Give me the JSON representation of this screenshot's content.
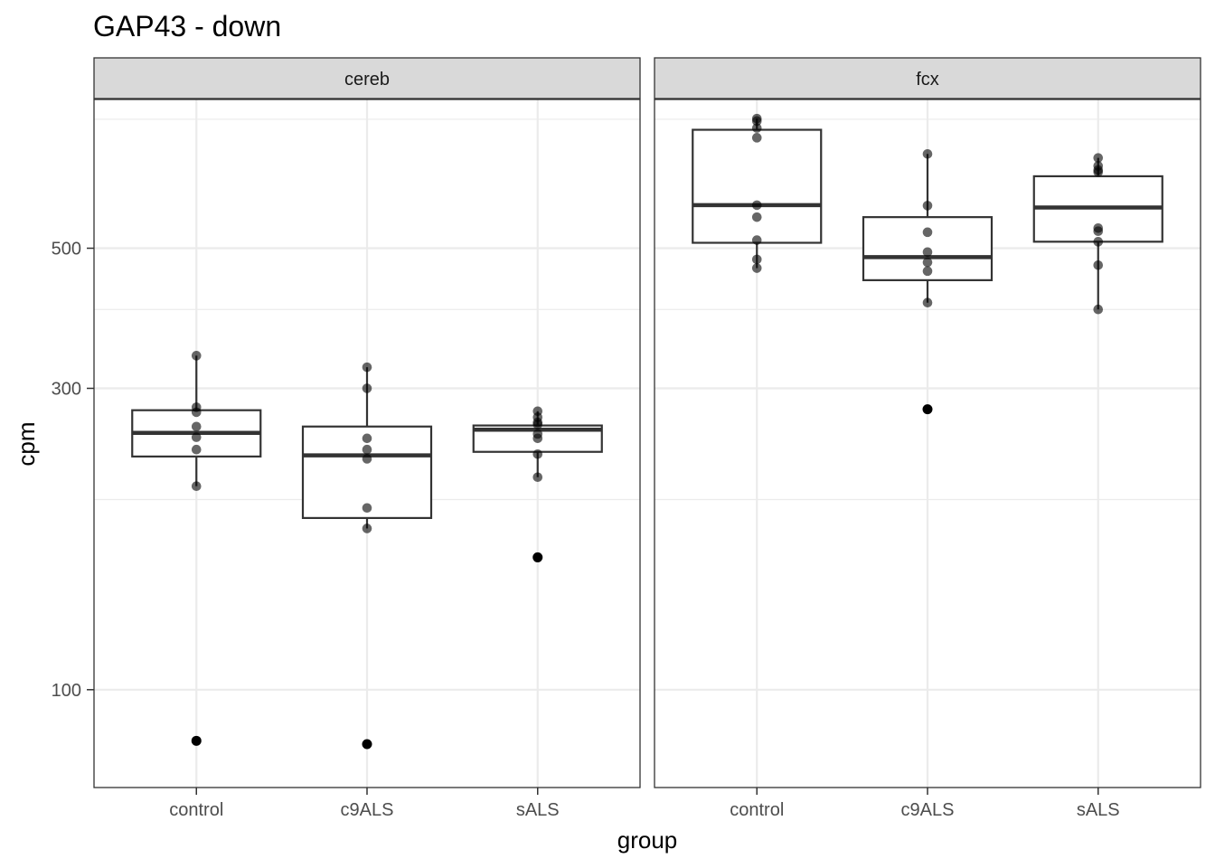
{
  "chart_data": {
    "type": "boxplot",
    "title": "GAP43 - down",
    "xlabel": "group",
    "ylabel": "cpm",
    "y_scale": "log10",
    "ylim": [
      70,
      860
    ],
    "y_ticks": [
      {
        "value": 100,
        "label": "100"
      },
      {
        "value": 300,
        "label": "300"
      },
      {
        "value": 500,
        "label": "500"
      }
    ],
    "y_minor_gridlines": [
      200,
      400,
      800
    ],
    "categories": [
      "control",
      "c9ALS",
      "sALS"
    ],
    "facets": [
      {
        "label": "cereb",
        "groups": [
          {
            "name": "control",
            "box": {
              "q1": 234,
              "median": 255,
              "q3": 277,
              "whisker_low": 210,
              "whisker_high": 338
            },
            "points": [
              338,
              280,
              275,
              261,
              251,
              240,
              210
            ],
            "outliers": [
              83
            ]
          },
          {
            "name": "c9ALS",
            "box": {
              "q1": 187,
              "median": 235,
              "q3": 261,
              "whisker_low": 180,
              "whisker_high": 324
            },
            "points": [
              324,
              300,
              250,
              240,
              232,
              194,
              180
            ],
            "outliers": [
              82
            ]
          },
          {
            "name": "sALS",
            "box": {
              "q1": 238,
              "median": 258,
              "q3": 262,
              "whisker_low": 217,
              "whisker_high": 276
            },
            "points": [
              276,
              270,
              265,
              263,
              254,
              250,
              236,
              217
            ],
            "outliers": [
              162
            ]
          }
        ]
      },
      {
        "label": "fcx",
        "groups": [
          {
            "name": "control",
            "box": {
              "q1": 510,
              "median": 585,
              "q3": 770,
              "whisker_low": 465,
              "whisker_high": 802
            },
            "points": [
              802,
              795,
              775,
              748,
              585,
              560,
              515,
              480,
              465
            ],
            "outliers": []
          },
          {
            "name": "c9ALS",
            "box": {
              "q1": 445,
              "median": 484,
              "q3": 560,
              "whisker_low": 410,
              "whisker_high": 705
            },
            "points": [
              705,
              584,
              530,
              493,
              475,
              460,
              410
            ],
            "outliers": [
              278
            ]
          },
          {
            "name": "sALS",
            "box": {
              "q1": 512,
              "median": 580,
              "q3": 650,
              "whisker_low": 400,
              "whisker_high": 695
            },
            "points": [
              695,
              675,
              665,
              660,
              538,
              532,
              512,
              470,
              400
            ],
            "outliers": []
          }
        ]
      }
    ]
  }
}
